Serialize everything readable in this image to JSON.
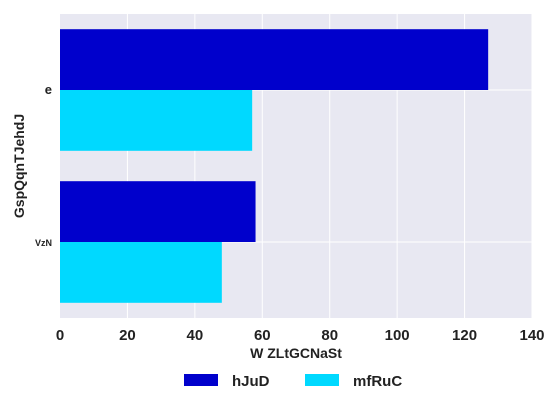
{
  "chart_data": {
    "type": "bar",
    "orientation": "horizontal",
    "categories": [
      "e",
      "VzN"
    ],
    "series": [
      {
        "name": "hJuD",
        "values": [
          127,
          58
        ],
        "color": "#0000cc"
      },
      {
        "name": "mfRuC",
        "values": [
          57,
          48
        ],
        "color": "#00d9ff"
      }
    ],
    "xlabel": "W ZLtGCNaSt",
    "ylabel": "GspQqnTJehdJ",
    "xlim": [
      0,
      140
    ],
    "xticks": [
      0,
      20,
      40,
      60,
      80,
      100,
      120,
      140
    ],
    "grid": true,
    "legend": "bottom"
  }
}
